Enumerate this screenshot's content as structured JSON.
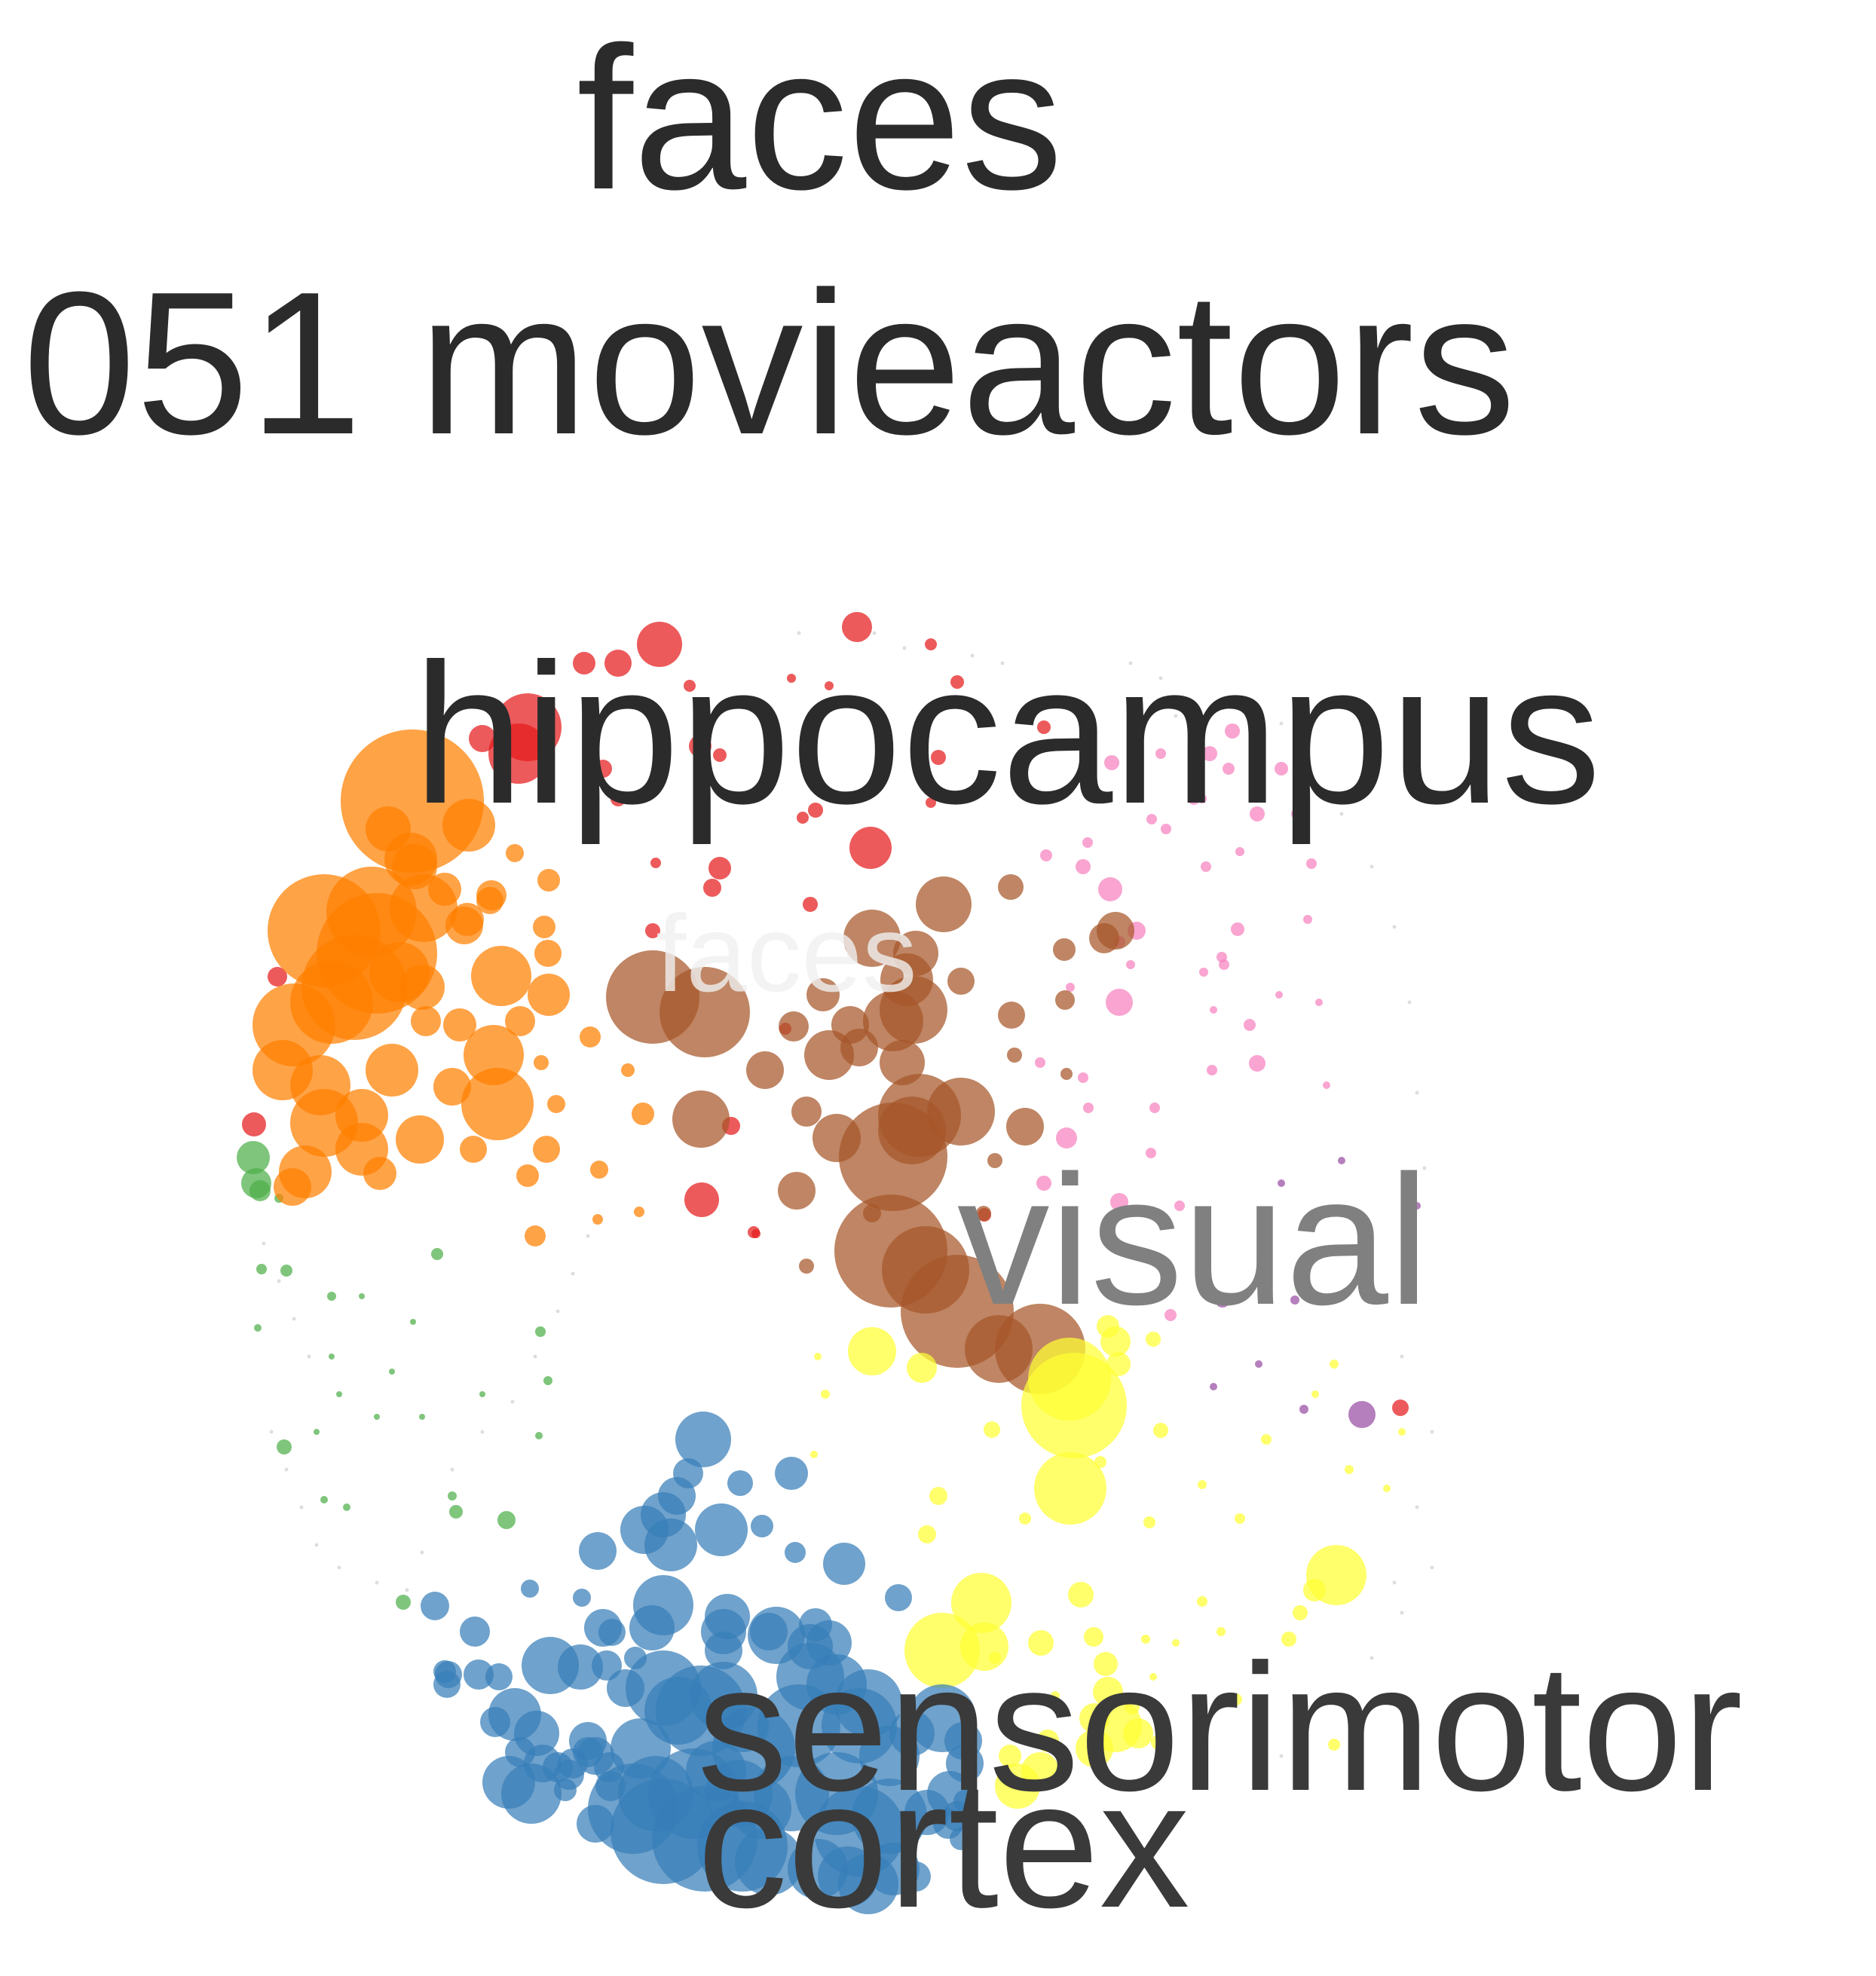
{
  "title": {
    "line1": "faces",
    "line2": "051 movieactors"
  },
  "labels": {
    "hippocampus": "hippocampus",
    "faces_faint": "faces",
    "visual": "visual",
    "sensorimotor": "sensorimotor",
    "cortex": "cortex"
  },
  "colors": {
    "text": "#2b2b2b",
    "visual_text": "#808080",
    "sensorimotor_text": "#3a3a3a",
    "faint_text": "#f2f2f2",
    "red": "#e41a1c",
    "blue": "#377eb8",
    "green": "#4daf4a",
    "purple": "#984ea3",
    "orange": "#ff7f00",
    "yellow": "#ffff33",
    "brown": "#a65628",
    "pink": "#f781bf"
  },
  "clusters": [
    {
      "name": "red",
      "color": "#e41a1c"
    },
    {
      "name": "orange",
      "color": "#ff7f00"
    },
    {
      "name": "brown",
      "color": "#a65628"
    },
    {
      "name": "pink",
      "color": "#f781bf"
    },
    {
      "name": "green",
      "color": "#4daf4a"
    },
    {
      "name": "purple",
      "color": "#984ea3"
    },
    {
      "name": "yellow",
      "color": "#ffff33"
    },
    {
      "name": "blue",
      "color": "#377eb8"
    }
  ]
}
